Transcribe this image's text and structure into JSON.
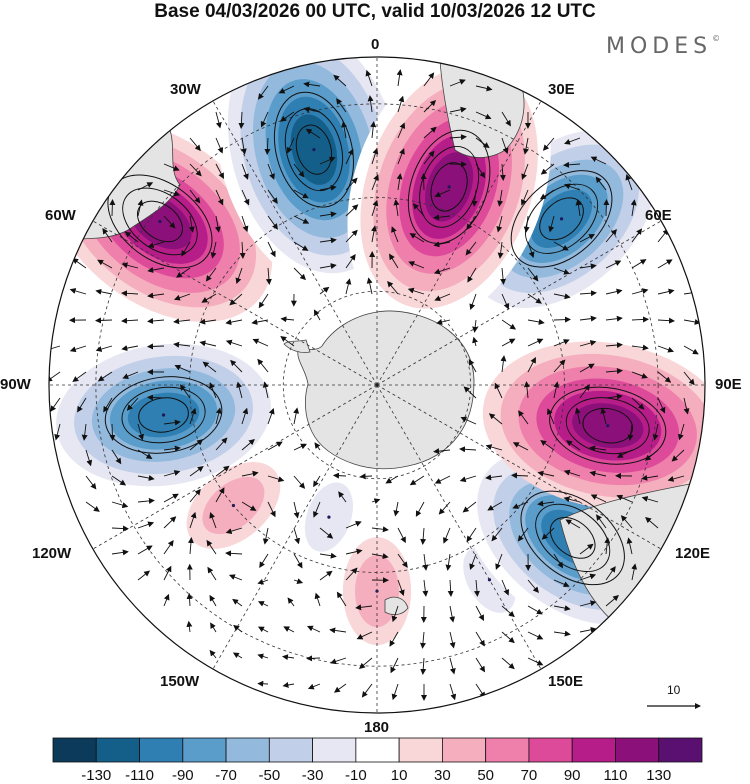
{
  "title": "Base 04/03/2026 00 UTC, valid 10/03/2026 12 UTC",
  "brand": "MODES",
  "brand_mark": "©",
  "longitude_labels": {
    "n0": "0",
    "e30": "30E",
    "e60": "60E",
    "e90": "90E",
    "e120": "120E",
    "e150": "150E",
    "s180": "180",
    "w150": "150W",
    "w120": "120W",
    "w90": "90W",
    "w60": "60W",
    "w30": "30W"
  },
  "colorbar": {
    "colors": [
      "#0b3a5a",
      "#145f8a",
      "#2f7fb3",
      "#5a9dcb",
      "#93b9dd",
      "#c2cfe8",
      "#e6e7f2",
      "#ffffff",
      "#f9d6d8",
      "#f5aebd",
      "#ee80ab",
      "#dd4a9a",
      "#b71d88",
      "#8c1079",
      "#5a1070"
    ],
    "tick_labels": [
      "-130",
      "-110",
      "-90",
      "-70",
      "-50",
      "-30",
      "-10",
      "10",
      "30",
      "50",
      "70",
      "90",
      "110",
      "130"
    ]
  },
  "reference_vector": {
    "label": "10",
    "icon": "arrow-right-icon"
  },
  "anomaly_centers": [
    {
      "id": "c1",
      "lon": 20,
      "colat": 45,
      "value": 120
    },
    {
      "id": "c2",
      "lon": -15,
      "colat": 52,
      "value": -125
    },
    {
      "id": "c3",
      "lon": 48,
      "colat": 53,
      "value": -95
    },
    {
      "id": "c4",
      "lon": -53,
      "colat": 58,
      "value": 115
    },
    {
      "id": "c5",
      "lon": 100,
      "colat": 50,
      "value": 110
    },
    {
      "id": "c6",
      "lon": -98,
      "colat": 46,
      "value": -95
    },
    {
      "id": "c7",
      "lon": 128,
      "colat": 53,
      "value": -105
    },
    {
      "id": "c8",
      "lon": -130,
      "colat": 40,
      "value": 40
    },
    {
      "id": "c9",
      "lon": 180,
      "colat": 44,
      "value": 30
    },
    {
      "id": "c10",
      "lon": -160,
      "colat": 30,
      "value": -15
    },
    {
      "id": "c11",
      "lon": 150,
      "colat": 48,
      "value": -15
    }
  ]
}
